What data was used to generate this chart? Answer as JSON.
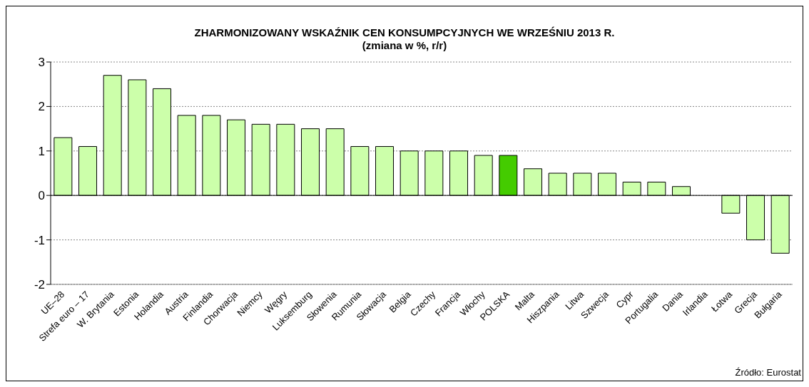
{
  "chart_data": {
    "type": "bar",
    "title": "ZHARMONIZOWANY WSKAŹNIK CEN KONSUMPCYJNYCH WE WRZEŚNIU 2013 R.",
    "subtitle": "(zmiana w %, r/r)",
    "categories": [
      "UE–28",
      "Strefa euro – 17",
      "W. Brytania",
      "Estonia",
      "Holandia",
      "Austria",
      "Finlandia",
      "Chorwacja",
      "Niemcy",
      "Węgry",
      "Luksemburg",
      "Słowenia",
      "Rumunia",
      "Słowacja",
      "Belgia",
      "Czechy",
      "Francja",
      "Włochy",
      "POLSKA",
      "Malta",
      "Hiszpania",
      "Litwa",
      "Szwecja",
      "Cypr",
      "Portugalia",
      "Dania",
      "Irlandia",
      "Łotwa",
      "Grecja",
      "Bułgaria"
    ],
    "values": [
      1.3,
      1.1,
      2.7,
      2.6,
      2.4,
      1.8,
      1.8,
      1.7,
      1.6,
      1.6,
      1.5,
      1.5,
      1.1,
      1.1,
      1.0,
      1.0,
      1.0,
      0.9,
      0.9,
      0.6,
      0.5,
      0.5,
      0.5,
      0.3,
      0.3,
      0.2,
      0,
      -0.4,
      -1.0,
      -1.3
    ],
    "colors": [
      "#ccffaa",
      "#ccffaa",
      "#ccffaa",
      "#ccffaa",
      "#ccffaa",
      "#ccffaa",
      "#ccffaa",
      "#ccffaa",
      "#ccffaa",
      "#ccffaa",
      "#ccffaa",
      "#ccffaa",
      "#ccffaa",
      "#ccffaa",
      "#ccffaa",
      "#ccffaa",
      "#ccffaa",
      "#ccffaa",
      "#44cc00",
      "#ccffaa",
      "#ccffaa",
      "#ccffaa",
      "#ccffaa",
      "#ccffaa",
      "#ccffaa",
      "#ccffaa",
      "#ccffaa",
      "#ccffaa",
      "#ccffaa",
      "#ccffaa"
    ],
    "ylim": [
      -2,
      3
    ],
    "yticks": [
      -2,
      -1,
      0,
      1,
      2,
      3
    ],
    "grid": "y",
    "ref_lines": [
      {
        "axis": "y",
        "value": 0,
        "color": "#000000"
      }
    ],
    "annotations": [
      "Źródło: Eurostat"
    ]
  }
}
